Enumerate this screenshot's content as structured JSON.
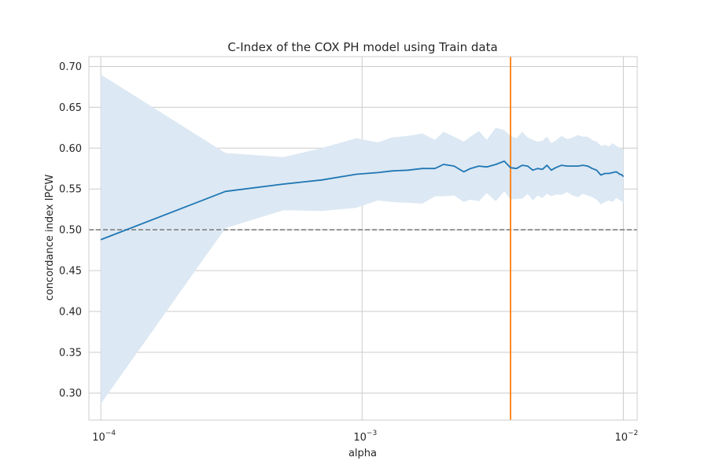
{
  "chart_data": {
    "type": "line",
    "title": "C-Index of the COX PH model using Train data",
    "xlabel": "alpha",
    "ylabel": "concordance index IPCW",
    "xscale": "log",
    "xlim": [
      9e-05,
      0.0113
    ],
    "ylim": [
      0.267,
      0.712
    ],
    "grid": true,
    "xticks": [
      {
        "value": 0.0001,
        "base": "10",
        "exp": "−4"
      },
      {
        "value": 0.001,
        "base": "10",
        "exp": "−3"
      },
      {
        "value": 0.01,
        "base": "10",
        "exp": "−2"
      }
    ],
    "yticks": [
      {
        "value": 0.3,
        "label": "0.30"
      },
      {
        "value": 0.35,
        "label": "0.35"
      },
      {
        "value": 0.4,
        "label": "0.40"
      },
      {
        "value": 0.45,
        "label": "0.45"
      },
      {
        "value": 0.5,
        "label": "0.50"
      },
      {
        "value": 0.55,
        "label": "0.55"
      },
      {
        "value": 0.6,
        "label": "0.60"
      },
      {
        "value": 0.65,
        "label": "0.65"
      },
      {
        "value": 0.7,
        "label": "0.70"
      }
    ],
    "series": [
      {
        "color": "#1f77b4",
        "band_color": "#dce8f3",
        "x": [
          0.0001,
          0.0003,
          0.0005,
          0.0007,
          0.00095,
          0.00115,
          0.0013,
          0.0015,
          0.0017,
          0.0019,
          0.00205,
          0.00225,
          0.00245,
          0.0026,
          0.0028,
          0.003,
          0.00325,
          0.0035,
          0.0037,
          0.0039,
          0.0041,
          0.0043,
          0.0045,
          0.0047,
          0.0049,
          0.0051,
          0.0053,
          0.0055,
          0.0058,
          0.0061,
          0.0064,
          0.0067,
          0.007,
          0.0073,
          0.0076,
          0.0079,
          0.0082,
          0.0085,
          0.0088,
          0.0091,
          0.0094,
          0.0097,
          0.0099,
          0.01
        ],
        "y": [
          0.488,
          0.547,
          0.556,
          0.561,
          0.568,
          0.57,
          0.572,
          0.573,
          0.575,
          0.575,
          0.58,
          0.578,
          0.571,
          0.575,
          0.578,
          0.577,
          0.58,
          0.584,
          0.576,
          0.575,
          0.579,
          0.578,
          0.573,
          0.575,
          0.574,
          0.579,
          0.573,
          0.576,
          0.579,
          0.578,
          0.578,
          0.578,
          0.579,
          0.578,
          0.575,
          0.573,
          0.567,
          0.569,
          0.569,
          0.57,
          0.571,
          0.568,
          0.567,
          0.565
        ],
        "upper": [
          0.69,
          0.594,
          0.589,
          0.6,
          0.612,
          0.607,
          0.613,
          0.615,
          0.618,
          0.61,
          0.62,
          0.614,
          0.608,
          0.614,
          0.621,
          0.61,
          0.625,
          0.622,
          0.615,
          0.612,
          0.62,
          0.613,
          0.61,
          0.608,
          0.609,
          0.614,
          0.606,
          0.609,
          0.615,
          0.611,
          0.613,
          0.616,
          0.614,
          0.614,
          0.61,
          0.608,
          0.603,
          0.604,
          0.602,
          0.606,
          0.603,
          0.6,
          0.599,
          0.598
        ],
        "lower": [
          0.287,
          0.502,
          0.524,
          0.523,
          0.527,
          0.536,
          0.534,
          0.533,
          0.532,
          0.541,
          0.541,
          0.542,
          0.534,
          0.537,
          0.535,
          0.545,
          0.535,
          0.547,
          0.537,
          0.538,
          0.538,
          0.544,
          0.536,
          0.542,
          0.539,
          0.544,
          0.541,
          0.543,
          0.543,
          0.546,
          0.542,
          0.54,
          0.544,
          0.542,
          0.54,
          0.537,
          0.531,
          0.534,
          0.536,
          0.534,
          0.539,
          0.536,
          0.535,
          0.532
        ]
      }
    ],
    "hline": {
      "y": 0.5,
      "color": "#808080",
      "style": "dashed"
    },
    "vline": {
      "x": 0.0037,
      "color": "#ff7f0e"
    }
  }
}
